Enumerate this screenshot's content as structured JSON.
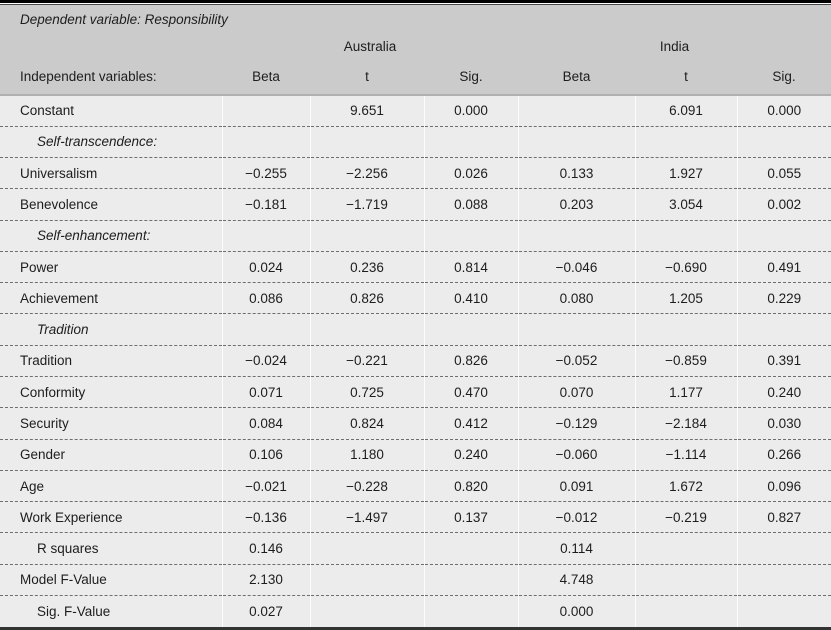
{
  "table": {
    "caption": "Dependent variable: Responsibility",
    "col_header_label": "Independent variables:",
    "group_headers": [
      "Australia",
      "India"
    ],
    "sub_headers": [
      "Beta",
      "t",
      "Sig.",
      "Beta",
      "t",
      "Sig."
    ],
    "rows": [
      {
        "type": "data",
        "label": "Constant",
        "values": [
          "",
          "9.651",
          "0.000",
          "",
          "6.091",
          "0.000"
        ]
      },
      {
        "type": "section",
        "label": "Self-transcendence:",
        "values": [
          "",
          "",
          "",
          "",
          "",
          ""
        ]
      },
      {
        "type": "data",
        "label": "Universalism",
        "values": [
          "−0.255",
          "−2.256",
          "0.026",
          "0.133",
          "1.927",
          "0.055"
        ]
      },
      {
        "type": "data",
        "label": "Benevolence",
        "values": [
          "−0.181",
          "−1.719",
          "0.088",
          "0.203",
          "3.054",
          "0.002"
        ]
      },
      {
        "type": "section",
        "label": "Self-enhancement:",
        "values": [
          "",
          "",
          "",
          "",
          "",
          ""
        ]
      },
      {
        "type": "data",
        "label": "Power",
        "values": [
          "0.024",
          "0.236",
          "0.814",
          "−0.046",
          "−0.690",
          "0.491"
        ]
      },
      {
        "type": "data",
        "label": "Achievement",
        "values": [
          "0.086",
          "0.826",
          "0.410",
          "0.080",
          "1.205",
          "0.229"
        ]
      },
      {
        "type": "section",
        "label": "Tradition",
        "values": [
          "",
          "",
          "",
          "",
          "",
          ""
        ]
      },
      {
        "type": "data",
        "label": "Tradition",
        "values": [
          "−0.024",
          "−0.221",
          "0.826",
          "−0.052",
          "−0.859",
          "0.391"
        ]
      },
      {
        "type": "data",
        "label": "Conformity",
        "values": [
          "0.071",
          "0.725",
          "0.470",
          "0.070",
          "1.177",
          "0.240"
        ]
      },
      {
        "type": "data",
        "label": "Security",
        "values": [
          "0.084",
          "0.824",
          "0.412",
          "−0.129",
          "−2.184",
          "0.030"
        ]
      },
      {
        "type": "data",
        "label": "Gender",
        "values": [
          "0.106",
          "1.180",
          "0.240",
          "−0.060",
          "−1.114",
          "0.266"
        ]
      },
      {
        "type": "data",
        "label": "Age",
        "values": [
          "−0.021",
          "−0.228",
          "0.820",
          "0.091",
          "1.672",
          "0.096"
        ]
      },
      {
        "type": "data",
        "label": "Work Experience",
        "values": [
          "−0.136",
          "−1.497",
          "0.137",
          "−0.012",
          "−0.219",
          "0.827"
        ]
      },
      {
        "type": "data",
        "label": "R squares",
        "indent": true,
        "values": [
          "0.146",
          "",
          "",
          "0.114",
          "",
          ""
        ]
      },
      {
        "type": "data",
        "label": "Model F-Value",
        "values": [
          "2.130",
          "",
          "",
          "4.748",
          "",
          ""
        ]
      },
      {
        "type": "data",
        "label": "Sig. F-Value",
        "indent": true,
        "values": [
          "0.027",
          "",
          "",
          "0.000",
          "",
          ""
        ]
      }
    ],
    "colors": {
      "header_bg": "#cbcbcb",
      "body_bg": "#ececec",
      "top_rule": "#000000",
      "bottom_rule": "#333333",
      "dotted_divider": "#6f6f6f"
    }
  }
}
